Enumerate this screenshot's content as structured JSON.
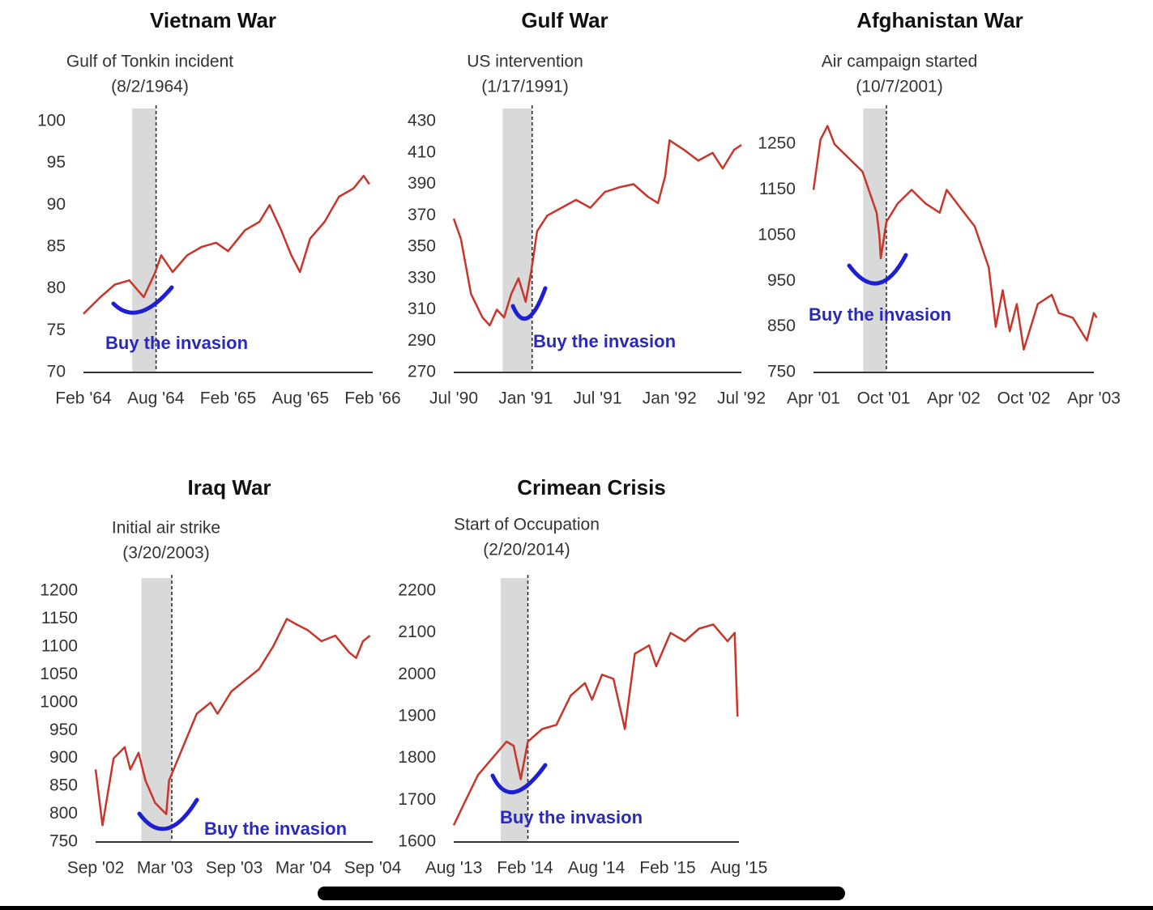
{
  "chart_data": [
    {
      "type": "line",
      "title": "Vietnam War",
      "event": {
        "label": "Gulf of Tonkin incident",
        "date": "(8/2/1964)",
        "x": 1964.585
      },
      "shade": [
        1964.42,
        1964.585
      ],
      "annotation": "Buy the invasion",
      "xlim": [
        1964.083,
        1966.083
      ],
      "xticks": [
        {
          "value": 1964.083,
          "label": "Feb '64"
        },
        {
          "value": 1964.583,
          "label": "Aug '64"
        },
        {
          "value": 1965.083,
          "label": "Feb '65"
        },
        {
          "value": 1965.583,
          "label": "Aug '65"
        },
        {
          "value": 1966.083,
          "label": "Feb '66"
        }
      ],
      "ylim": [
        70,
        100
      ],
      "yticks": [
        70,
        75,
        80,
        85,
        90,
        95,
        100
      ],
      "series": [
        {
          "name": "Vietnam War",
          "color": "#c8352b",
          "x": [
            1964.083,
            1964.2,
            1964.3,
            1964.4,
            1964.45,
            1964.5,
            1964.58,
            1964.62,
            1964.7,
            1964.8,
            1964.9,
            1965.0,
            1965.083,
            1965.2,
            1965.3,
            1965.37,
            1965.45,
            1965.52,
            1965.58,
            1965.65,
            1965.75,
            1965.85,
            1965.95,
            1966.02,
            1966.06
          ],
          "values": [
            77,
            79,
            80.5,
            81,
            80,
            79,
            82,
            84,
            82,
            84,
            85,
            85.5,
            84.5,
            87,
            88,
            90,
            87,
            84,
            82,
            86,
            88,
            91,
            92,
            93.5,
            92.5
          ]
        }
      ]
    },
    {
      "type": "line",
      "title": "Gulf War",
      "event": {
        "label": "US intervention",
        "date": "(1/17/1991)",
        "x": 1991.045
      },
      "shade": [
        1990.84,
        1991.045
      ],
      "annotation": "Buy the invasion",
      "xlim": [
        1990.5,
        1992.5
      ],
      "xticks": [
        {
          "value": 1990.5,
          "label": "Jul '90"
        },
        {
          "value": 1991.0,
          "label": "Jan '91"
        },
        {
          "value": 1991.5,
          "label": "Jul '91"
        },
        {
          "value": 1992.0,
          "label": "Jan '92"
        },
        {
          "value": 1992.5,
          "label": "Jul '92"
        }
      ],
      "ylim": [
        270,
        430
      ],
      "yticks": [
        270,
        290,
        310,
        330,
        350,
        370,
        390,
        410,
        430
      ],
      "series": [
        {
          "name": "Gulf War",
          "color": "#c8352b",
          "x": [
            1990.5,
            1990.55,
            1990.62,
            1990.7,
            1990.75,
            1990.8,
            1990.85,
            1990.9,
            1990.95,
            1991.0,
            1991.04,
            1991.08,
            1991.15,
            1991.25,
            1991.35,
            1991.45,
            1991.55,
            1991.65,
            1991.75,
            1991.85,
            1991.92,
            1991.97,
            1992.0,
            1992.1,
            1992.2,
            1992.3,
            1992.37,
            1992.45,
            1992.5
          ],
          "values": [
            368,
            355,
            320,
            305,
            300,
            310,
            305,
            320,
            330,
            315,
            335,
            360,
            370,
            375,
            380,
            375,
            385,
            388,
            390,
            382,
            378,
            395,
            418,
            412,
            405,
            410,
            400,
            412,
            415
          ]
        }
      ]
    },
    {
      "type": "line",
      "title": "Afghanistan War",
      "event": {
        "label": "Air campaign started",
        "date": "(10/7/2001)",
        "x": 2001.77
      },
      "shade": [
        2001.605,
        2001.77
      ],
      "annotation": "Buy the invasion",
      "xlim": [
        2001.25,
        2003.25
      ],
      "xticks": [
        {
          "value": 2001.25,
          "label": "Apr '01"
        },
        {
          "value": 2001.75,
          "label": "Oct '01"
        },
        {
          "value": 2002.25,
          "label": "Apr '02"
        },
        {
          "value": 2002.75,
          "label": "Oct '02"
        },
        {
          "value": 2003.25,
          "label": "Apr '03"
        }
      ],
      "ylim": [
        750,
        1300
      ],
      "yticks": [
        750,
        850,
        950,
        1050,
        1150,
        1250
      ],
      "series": [
        {
          "name": "Afghanistan War",
          "color": "#c8352b",
          "x": [
            2001.25,
            2001.3,
            2001.35,
            2001.4,
            2001.5,
            2001.6,
            2001.7,
            2001.72,
            2001.73,
            2001.77,
            2001.85,
            2001.95,
            2002.05,
            2002.15,
            2002.2,
            2002.3,
            2002.4,
            2002.5,
            2002.55,
            2002.6,
            2002.65,
            2002.7,
            2002.75,
            2002.85,
            2002.95,
            2003.0,
            2003.1,
            2003.2,
            2003.25,
            2003.27
          ],
          "values": [
            1150,
            1260,
            1290,
            1250,
            1220,
            1190,
            1100,
            1050,
            1000,
            1080,
            1120,
            1150,
            1120,
            1100,
            1150,
            1110,
            1070,
            980,
            850,
            930,
            840,
            900,
            800,
            900,
            920,
            880,
            870,
            820,
            880,
            870
          ]
        }
      ]
    },
    {
      "type": "line",
      "title": "Iraq War",
      "event": {
        "label": "Initial air strike",
        "date": "(3/20/2003)",
        "x": 2003.22
      },
      "shade": [
        2003.0,
        2003.22
      ],
      "annotation": "Buy the invasion",
      "xlim": [
        2002.67,
        2004.67
      ],
      "xticks": [
        {
          "value": 2002.67,
          "label": "Sep '02"
        },
        {
          "value": 2003.17,
          "label": "Mar '03"
        },
        {
          "value": 2003.67,
          "label": "Sep '03"
        },
        {
          "value": 2004.17,
          "label": "Mar '04"
        },
        {
          "value": 2004.67,
          "label": "Sep '04"
        }
      ],
      "ylim": [
        750,
        1200
      ],
      "yticks": [
        750,
        800,
        850,
        900,
        950,
        1000,
        1050,
        1100,
        1150,
        1200
      ],
      "series": [
        {
          "name": "Iraq War",
          "color": "#c8352b",
          "x": [
            2002.67,
            2002.72,
            2002.8,
            2002.88,
            2002.92,
            2002.98,
            2003.03,
            2003.1,
            2003.18,
            2003.2,
            2003.3,
            2003.4,
            2003.5,
            2003.55,
            2003.65,
            2003.75,
            2003.85,
            2003.95,
            2004.05,
            2004.12,
            2004.2,
            2004.3,
            2004.4,
            2004.5,
            2004.55,
            2004.6,
            2004.65
          ],
          "values": [
            880,
            780,
            900,
            920,
            880,
            910,
            860,
            820,
            800,
            860,
            920,
            980,
            1000,
            980,
            1020,
            1040,
            1060,
            1100,
            1150,
            1140,
            1130,
            1110,
            1120,
            1090,
            1080,
            1110,
            1120
          ]
        }
      ]
    },
    {
      "type": "line",
      "title": "Crimean Crisis",
      "event": {
        "label": "Start of Occupation",
        "date": "(2/20/2014)",
        "x": 2014.1
      },
      "shade": [
        2013.91,
        2014.1
      ],
      "annotation": "Buy the invasion",
      "xlim": [
        2013.58,
        2015.58
      ],
      "xticks": [
        {
          "value": 2013.58,
          "label": "Aug '13"
        },
        {
          "value": 2014.08,
          "label": "Feb '14"
        },
        {
          "value": 2014.58,
          "label": "Aug '14"
        },
        {
          "value": 2015.08,
          "label": "Feb '15"
        },
        {
          "value": 2015.58,
          "label": "Aug '15"
        }
      ],
      "ylim": [
        1600,
        2200
      ],
      "yticks": [
        1600,
        1700,
        1800,
        1900,
        2000,
        2100,
        2200
      ],
      "series": [
        {
          "name": "Crimean Crisis",
          "color": "#c8352b",
          "x": [
            2013.58,
            2013.65,
            2013.75,
            2013.85,
            2013.95,
            2014.0,
            2014.05,
            2014.1,
            2014.2,
            2014.3,
            2014.4,
            2014.5,
            2014.55,
            2014.62,
            2014.7,
            2014.78,
            2014.85,
            2014.95,
            2015.0,
            2015.1,
            2015.2,
            2015.3,
            2015.4,
            2015.45,
            2015.5,
            2015.55,
            2015.57
          ],
          "values": [
            1640,
            1690,
            1760,
            1800,
            1840,
            1830,
            1750,
            1840,
            1870,
            1880,
            1950,
            1980,
            1940,
            2000,
            1990,
            1870,
            2050,
            2070,
            2020,
            2100,
            2080,
            2110,
            2120,
            2100,
            2080,
            2100,
            1900
          ]
        }
      ]
    }
  ]
}
